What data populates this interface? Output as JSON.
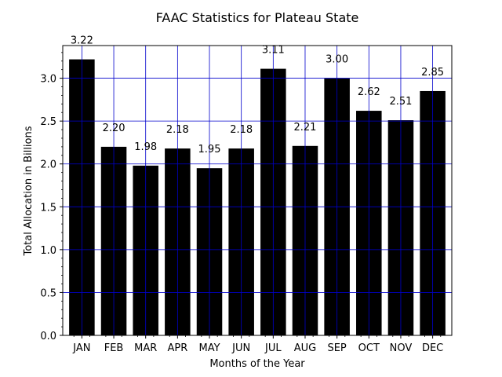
{
  "chart_data": {
    "type": "bar",
    "title": "FAAC Statistics for Plateau State",
    "xlabel": "Months of the Year",
    "ylabel": "Total Allocation in Billions",
    "categories": [
      "JAN",
      "FEB",
      "MAR",
      "APR",
      "MAY",
      "JUN",
      "JUL",
      "AUG",
      "SEP",
      "OCT",
      "NOV",
      "DEC"
    ],
    "values": [
      3.22,
      2.2,
      1.98,
      2.18,
      1.95,
      2.18,
      3.11,
      2.21,
      3.0,
      2.62,
      2.51,
      2.85
    ],
    "value_labels": [
      "3.22",
      "2.20",
      "1.98",
      "2.18",
      "1.95",
      "2.18",
      "3.11",
      "2.21",
      "3.00",
      "2.62",
      "2.51",
      "2.85"
    ],
    "yticks": [
      0.0,
      0.5,
      1.0,
      1.5,
      2.0,
      2.5,
      3.0
    ],
    "ytick_labels": [
      "0.0",
      "0.5",
      "1.0",
      "1.5",
      "2.0",
      "2.5",
      "3.0"
    ],
    "ylim": [
      0,
      3.381
    ],
    "grid": true,
    "colors": {
      "bar": "#000000",
      "grid": "#0000cc"
    }
  }
}
